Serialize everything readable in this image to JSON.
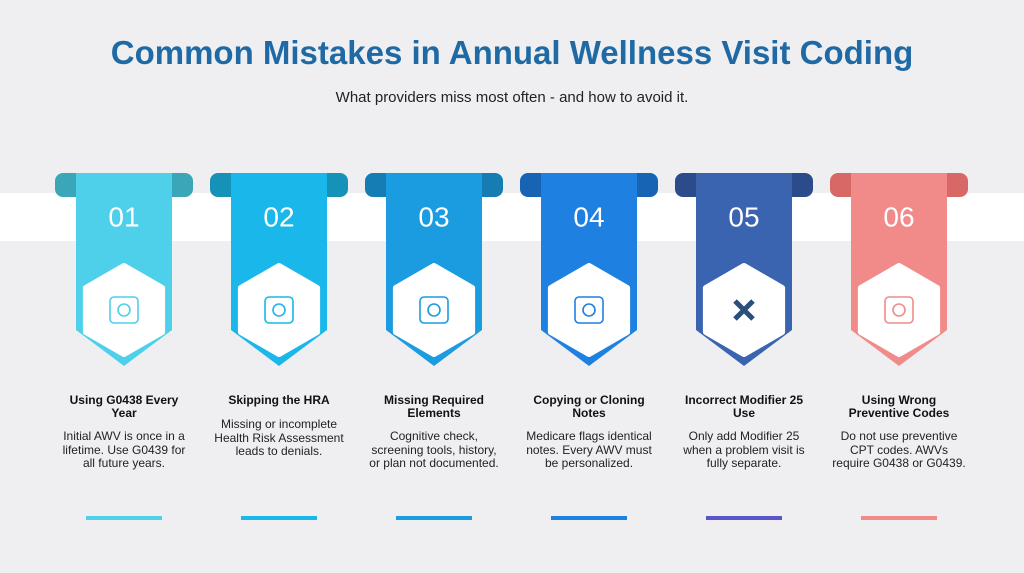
{
  "header": {
    "title": "Common Mistakes in Annual Wellness Visit Coding",
    "subtitle": "What providers miss most often - and how to avoid it."
  },
  "items": [
    {
      "number": "01",
      "title": "Using G0438 Every Year",
      "description": "Initial AWV is once in a lifetime. Use G0439 for all future years."
    },
    {
      "number": "02",
      "title": "Skipping the HRA",
      "description": "Missing or incomplete Health Risk Assessment leads to denials."
    },
    {
      "number": "03",
      "title": "Missing Required Elements",
      "description": "Cognitive check, screening tools, history, or plan not documented."
    },
    {
      "number": "04",
      "title": "Copying or Cloning Notes",
      "description": "Medicare flags identical notes. Every AWV must be personalized."
    },
    {
      "number": "05",
      "title": "Incorrect Modifier 25 Use",
      "description": "Only add Modifier 25 when a problem visit is fully separate."
    },
    {
      "number": "06",
      "title": "Using Wrong Preventive Codes",
      "description": "Do not use preventive CPT codes. AWVs require G0438 or G0439."
    }
  ]
}
